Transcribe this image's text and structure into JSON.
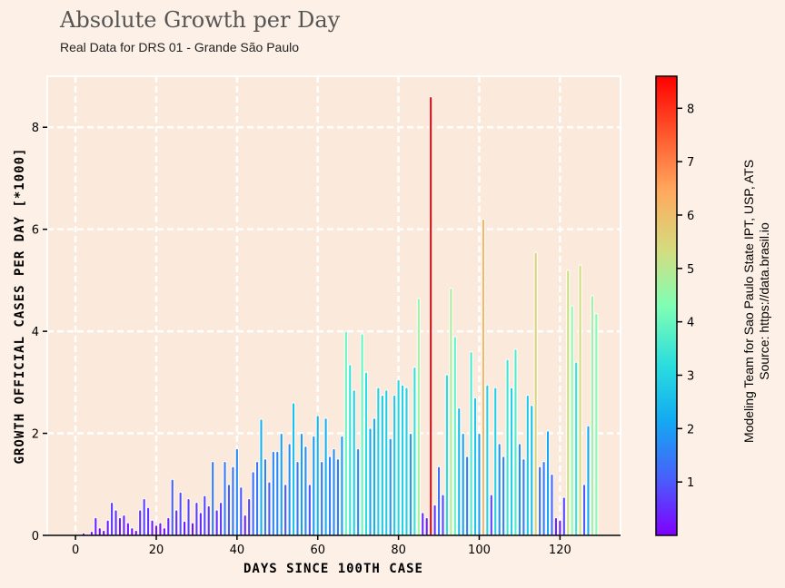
{
  "title": "Absolute Growth per Day",
  "subtitle": "Real Data for DRS 01 - Grande São Paulo",
  "source": {
    "line1": "Modeling Team for Sao Paulo State IPT, USP, ATS",
    "line2": "Source: https://data.brasil.io"
  },
  "chart_data": {
    "type": "bar",
    "xlabel": "DAYS SINCE 100TH CASE",
    "ylabel": "GROWTH OFFICIAL CASES PER DAY [*1000]",
    "xlim": [
      -7,
      135
    ],
    "ylim": [
      0,
      9.0
    ],
    "xticks": [
      0,
      20,
      40,
      60,
      80,
      100,
      120
    ],
    "yticks": [
      0,
      2,
      4,
      6,
      8
    ],
    "grid": true,
    "colorbar": {
      "ticks": [
        1,
        2,
        3,
        4,
        5,
        6,
        7,
        8
      ],
      "min": 0,
      "max": 8.6,
      "colormap": "rainbow"
    },
    "x": [
      0,
      1,
      2,
      3,
      4,
      5,
      6,
      7,
      8,
      9,
      10,
      11,
      12,
      13,
      14,
      15,
      16,
      17,
      18,
      19,
      20,
      21,
      22,
      23,
      24,
      25,
      26,
      27,
      28,
      29,
      30,
      31,
      32,
      33,
      34,
      35,
      36,
      37,
      38,
      39,
      40,
      41,
      42,
      43,
      44,
      45,
      46,
      47,
      48,
      49,
      50,
      51,
      52,
      53,
      54,
      55,
      56,
      57,
      58,
      59,
      60,
      61,
      62,
      63,
      64,
      65,
      66,
      67,
      68,
      69,
      70,
      71,
      72,
      73,
      74,
      75,
      76,
      77,
      78,
      79,
      80,
      81,
      82,
      83,
      84,
      85,
      86,
      87,
      88,
      89,
      90,
      91,
      92,
      93,
      94,
      95,
      96,
      97,
      98,
      99,
      100,
      101,
      102,
      103,
      104,
      105,
      106,
      107,
      108,
      109,
      110,
      111,
      112,
      113,
      114,
      115,
      116,
      117,
      118,
      119,
      120,
      121,
      122,
      123,
      124,
      125,
      126,
      127,
      128,
      129
    ],
    "values": [
      0,
      0,
      0.05,
      0.02,
      0.08,
      0.35,
      0.15,
      0.1,
      0.3,
      0.65,
      0.5,
      0.35,
      0.4,
      0.25,
      0.15,
      0.1,
      0.5,
      0.72,
      0.55,
      0.3,
      0.2,
      0.25,
      0.15,
      0.35,
      1.1,
      0.5,
      0.85,
      0.28,
      0.72,
      0.25,
      0.65,
      0.45,
      0.78,
      0.58,
      1.45,
      0.5,
      0.65,
      1.45,
      1.0,
      1.35,
      1.7,
      0.95,
      0.4,
      0.72,
      1.25,
      1.45,
      2.28,
      1.5,
      1.05,
      1.65,
      1.65,
      2.0,
      1.0,
      1.8,
      2.6,
      1.45,
      2.0,
      1.75,
      1.0,
      1.95,
      2.35,
      1.45,
      2.3,
      1.55,
      1.7,
      1.5,
      1.95,
      4.0,
      3.35,
      2.85,
      1.7,
      3.95,
      3.2,
      2.1,
      2.3,
      2.9,
      2.75,
      2.85,
      1.9,
      2.75,
      3.05,
      2.95,
      2.9,
      2.0,
      3.3,
      4.65,
      0.45,
      0.35,
      8.6,
      0.6,
      1.35,
      0.8,
      3.15,
      4.85,
      3.9,
      2.5,
      2.0,
      1.55,
      3.6,
      2.7,
      2.0,
      6.2,
      2.95,
      0.8,
      2.9,
      1.8,
      1.55,
      3.45,
      2.9,
      3.65,
      1.8,
      1.5,
      2.75,
      2.55,
      5.55,
      1.35,
      1.45,
      2.05,
      1.2,
      0.35,
      0.3,
      0.75,
      5.2,
      4.5,
      3.4,
      5.3,
      1.0,
      2.15,
      4.7,
      4.35
    ]
  }
}
